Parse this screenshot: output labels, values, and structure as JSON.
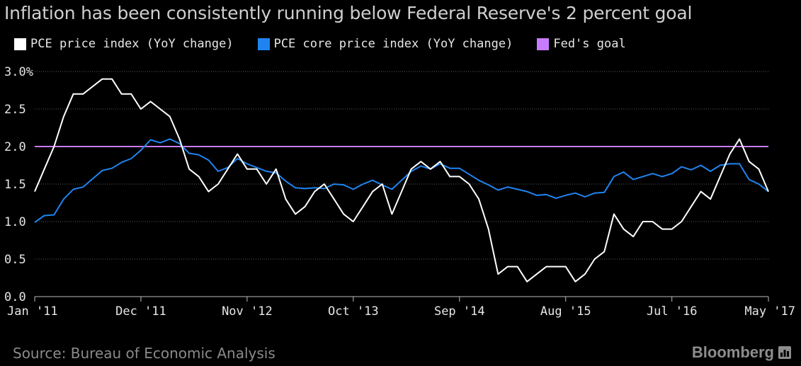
{
  "source": "Source: Bureau of Economic Analysis",
  "brand": "Bloomberg",
  "chart_data": {
    "type": "line",
    "title": "Inflation has been consistently running below Federal Reserve's 2 percent goal",
    "ylim": [
      0.0,
      3.0
    ],
    "y_ticks": [
      "3.0%",
      "2.5",
      "2.0",
      "1.5",
      "1.0",
      "0.5",
      "0.0"
    ],
    "x_start": "2011-01",
    "x_end": "2017-05",
    "x_ticks": [
      {
        "label": "Jan '11",
        "month": "2011-01"
      },
      {
        "label": "Dec '11",
        "month": "2011-12"
      },
      {
        "label": "Nov '12",
        "month": "2012-11"
      },
      {
        "label": "Oct '13",
        "month": "2013-10"
      },
      {
        "label": "Sep '14",
        "month": "2014-09"
      },
      {
        "label": "Aug '15",
        "month": "2015-08"
      },
      {
        "label": "Jul '16",
        "month": "2016-07"
      },
      {
        "label": "May '17",
        "month": "2017-05"
      }
    ],
    "grid": true,
    "legend_position": "top",
    "series": [
      {
        "name": "PCE price index (YoY change)",
        "color": "#ffffff",
        "values": [
          1.4,
          1.7,
          2.0,
          2.4,
          2.7,
          2.7,
          2.8,
          2.9,
          2.9,
          2.7,
          2.7,
          2.5,
          2.6,
          2.5,
          2.4,
          2.1,
          1.7,
          1.6,
          1.4,
          1.5,
          1.7,
          1.9,
          1.7,
          1.7,
          1.5,
          1.7,
          1.3,
          1.1,
          1.2,
          1.4,
          1.5,
          1.3,
          1.1,
          1.0,
          1.2,
          1.4,
          1.5,
          1.1,
          1.4,
          1.7,
          1.8,
          1.7,
          1.8,
          1.6,
          1.6,
          1.5,
          1.3,
          0.9,
          0.3,
          0.4,
          0.4,
          0.2,
          0.3,
          0.4,
          0.4,
          0.4,
          0.2,
          0.3,
          0.5,
          0.6,
          1.1,
          0.9,
          0.8,
          1.0,
          1.0,
          0.9,
          0.9,
          1.0,
          1.2,
          1.4,
          1.3,
          1.6,
          1.9,
          2.1,
          1.8,
          1.7,
          1.4
        ]
      },
      {
        "name": "PCE core price index (YoY change)",
        "color": "#1f84f0",
        "values": [
          0.99,
          1.08,
          1.09,
          1.3,
          1.43,
          1.46,
          1.57,
          1.68,
          1.71,
          1.79,
          1.84,
          1.95,
          2.09,
          2.05,
          2.1,
          2.04,
          1.91,
          1.89,
          1.82,
          1.67,
          1.72,
          1.84,
          1.77,
          1.72,
          1.67,
          1.65,
          1.54,
          1.45,
          1.44,
          1.45,
          1.44,
          1.5,
          1.49,
          1.43,
          1.5,
          1.55,
          1.49,
          1.43,
          1.55,
          1.67,
          1.74,
          1.7,
          1.77,
          1.71,
          1.71,
          1.63,
          1.55,
          1.49,
          1.42,
          1.46,
          1.43,
          1.4,
          1.35,
          1.36,
          1.31,
          1.35,
          1.38,
          1.33,
          1.38,
          1.39,
          1.6,
          1.66,
          1.56,
          1.6,
          1.64,
          1.6,
          1.64,
          1.73,
          1.69,
          1.75,
          1.67,
          1.75,
          1.77,
          1.77,
          1.56,
          1.5,
          1.4
        ]
      },
      {
        "name": "Fed's goal",
        "color": "#c77cff",
        "values": [
          2.0,
          2.0
        ]
      }
    ]
  }
}
